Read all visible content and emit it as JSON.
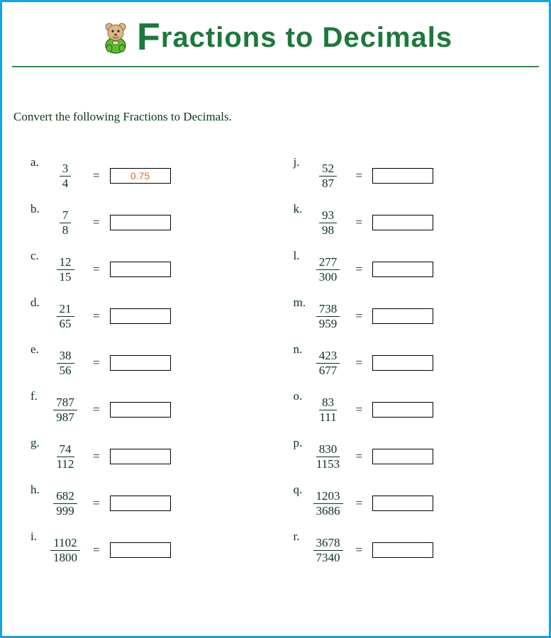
{
  "title": {
    "first_letter": "F",
    "rest": "ractions to Decimals",
    "color": "#1a7a3a",
    "font": "Comic Sans MS",
    "big_font_size": 54,
    "font_size": 40
  },
  "border_color": "#1e9fe0",
  "rule_color": "#1a9a4a",
  "instruction": "Convert the following Fractions to Decimals.",
  "text_color": "#0a3028",
  "answer_color": "#e06a2a",
  "bear": {
    "body_color": "#5bbf2e",
    "head_color": "#d9b98a",
    "outline": "#2a5a1a"
  },
  "left": [
    {
      "label": "a.",
      "num": "3",
      "den": "4",
      "answer": "0.75"
    },
    {
      "label": "b.",
      "num": "7",
      "den": "8",
      "answer": ""
    },
    {
      "label": "c.",
      "num": "12",
      "den": "15",
      "answer": ""
    },
    {
      "label": "d.",
      "num": "21",
      "den": "65",
      "answer": ""
    },
    {
      "label": "e.",
      "num": "38",
      "den": "56",
      "answer": ""
    },
    {
      "label": "f.",
      "num": "787",
      "den": "987",
      "answer": ""
    },
    {
      "label": "g.",
      "num": "74",
      "den": "112",
      "answer": ""
    },
    {
      "label": "h.",
      "num": "682",
      "den": "999",
      "answer": ""
    },
    {
      "label": "i.",
      "num": "1102",
      "den": "1800",
      "answer": ""
    }
  ],
  "right": [
    {
      "label": "j.",
      "num": "52",
      "den": "87",
      "answer": ""
    },
    {
      "label": "k.",
      "num": "93",
      "den": "98",
      "answer": ""
    },
    {
      "label": "l.",
      "num": "277",
      "den": "300",
      "answer": ""
    },
    {
      "label": "m.",
      "num": "738",
      "den": "959",
      "answer": ""
    },
    {
      "label": "n.",
      "num": "423",
      "den": "677",
      "answer": ""
    },
    {
      "label": "o.",
      "num": "83",
      "den": "111",
      "answer": ""
    },
    {
      "label": "p.",
      "num": "830",
      "den": "1153",
      "answer": ""
    },
    {
      "label": "q.",
      "num": "1203",
      "den": "3686",
      "answer": ""
    },
    {
      "label": "r.",
      "num": "3678",
      "den": "7340",
      "answer": ""
    }
  ]
}
